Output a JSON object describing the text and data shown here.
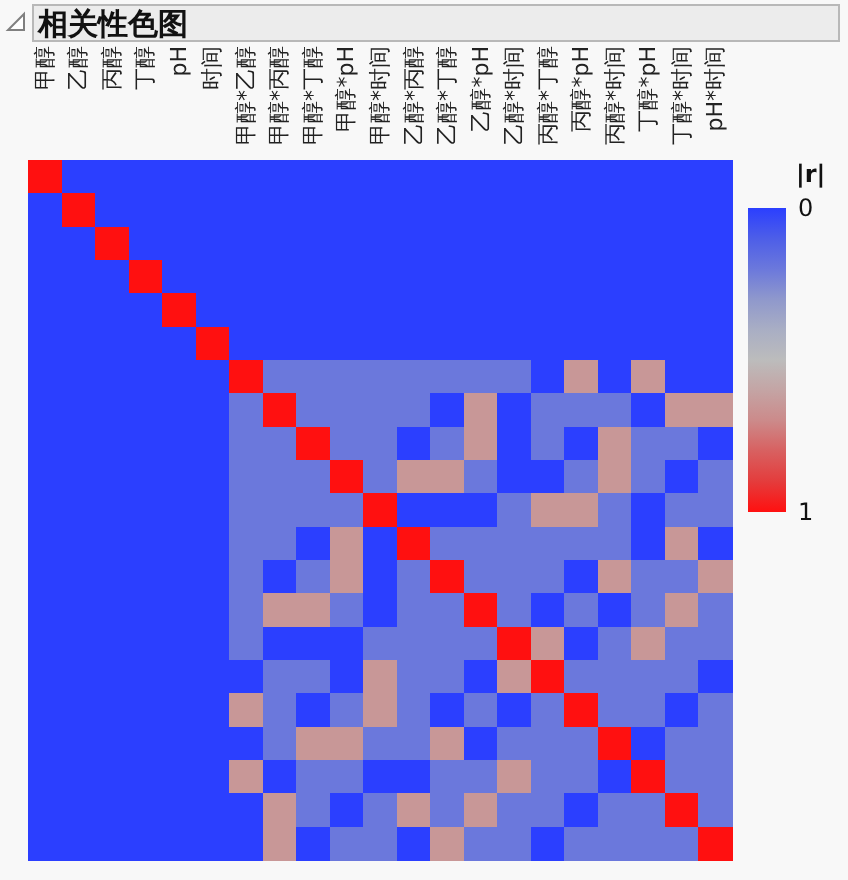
{
  "chart_data": {
    "type": "heatmap",
    "title": "相关性色图",
    "categories": [
      "甲醇",
      "乙醇",
      "丙醇",
      "丁醇",
      "pH",
      "时间",
      "甲醇*乙醇",
      "甲醇*丙醇",
      "甲醇*丁醇",
      "甲醇*pH",
      "甲醇*时间",
      "乙醇*丙醇",
      "乙醇*丁醇",
      "乙醇*pH",
      "乙醇*时间",
      "丙醇*丁醇",
      "丙醇*pH",
      "丙醇*时间",
      "丁醇*pH",
      "丁醇*时间",
      "pH*时间"
    ],
    "y_categories": [
      null,
      null,
      null,
      null,
      null,
      null,
      null,
      null,
      null,
      null,
      null,
      null,
      null,
      null,
      null,
      null,
      null,
      null,
      null,
      null,
      null
    ],
    "tick_labels": "x",
    "cells": [
      [
        1,
        0,
        0,
        0,
        0,
        0,
        0,
        0,
        0,
        0,
        0,
        0,
        0,
        0,
        0,
        0,
        0,
        0,
        0,
        0,
        0
      ],
      [
        0,
        1,
        0,
        0,
        0,
        0,
        0,
        0,
        0,
        0,
        0,
        0,
        0,
        0,
        0,
        0,
        0,
        0,
        0,
        0,
        0
      ],
      [
        0,
        0,
        1,
        0,
        0,
        0,
        0,
        0,
        0,
        0,
        0,
        0,
        0,
        0,
        0,
        0,
        0,
        0,
        0,
        0,
        0
      ],
      [
        0,
        0,
        0,
        1,
        0,
        0,
        0,
        0,
        0,
        0,
        0,
        0,
        0,
        0,
        0,
        0,
        0,
        0,
        0,
        0,
        0
      ],
      [
        0,
        0,
        0,
        0,
        1,
        0,
        0,
        0,
        0,
        0,
        0,
        0,
        0,
        0,
        0,
        0,
        0,
        0,
        0,
        0,
        0
      ],
      [
        0,
        0,
        0,
        0,
        0,
        1,
        0,
        0,
        0,
        0,
        0,
        0,
        0,
        0,
        0,
        0,
        0,
        0,
        0,
        0,
        0
      ],
      [
        0,
        0,
        0,
        0,
        0,
        0,
        1,
        0.2,
        0.2,
        0.2,
        0.2,
        0.2,
        0.2,
        0.2,
        0.2,
        0,
        0.65,
        0,
        0.65,
        0,
        0
      ],
      [
        0,
        0,
        0,
        0,
        0,
        0,
        0.2,
        1,
        0.2,
        0.2,
        0.2,
        0.2,
        0,
        0.65,
        0,
        0.2,
        0.2,
        0.2,
        0,
        0.65,
        0.65
      ],
      [
        0,
        0,
        0,
        0,
        0,
        0,
        0.2,
        0.2,
        1,
        0.2,
        0.2,
        0,
        0.2,
        0.65,
        0,
        0.2,
        0,
        0.65,
        0.2,
        0.2,
        0
      ],
      [
        0,
        0,
        0,
        0,
        0,
        0,
        0.2,
        0.2,
        0.2,
        1,
        0.2,
        0.65,
        0.65,
        0.2,
        0,
        0,
        0.2,
        0.65,
        0.2,
        0,
        0.2
      ],
      [
        0,
        0,
        0,
        0,
        0,
        0,
        0.2,
        0.2,
        0.2,
        0.2,
        1,
        0,
        0,
        0,
        0.2,
        0.65,
        0.65,
        0.2,
        0,
        0.2,
        0.2
      ],
      [
        0,
        0,
        0,
        0,
        0,
        0,
        0.2,
        0.2,
        0,
        0.65,
        0,
        1,
        0.2,
        0.2,
        0.2,
        0.2,
        0.2,
        0.2,
        0,
        0.65,
        0
      ],
      [
        0,
        0,
        0,
        0,
        0,
        0,
        0.2,
        0,
        0.2,
        0.65,
        0,
        0.2,
        1,
        0.2,
        0.2,
        0.2,
        0,
        0.65,
        0.2,
        0.2,
        0.65
      ],
      [
        0,
        0,
        0,
        0,
        0,
        0,
        0.2,
        0.65,
        0.65,
        0.2,
        0,
        0.2,
        0.2,
        1,
        0.2,
        0,
        0.2,
        0,
        0.2,
        0.65,
        0.2
      ],
      [
        0,
        0,
        0,
        0,
        0,
        0,
        0.2,
        0,
        0,
        0,
        0.2,
        0.2,
        0.2,
        0.2,
        1,
        0.65,
        0,
        0.2,
        0.65,
        0.2,
        0.2
      ],
      [
        0,
        0,
        0,
        0,
        0,
        0,
        0,
        0.2,
        0.2,
        0,
        0.65,
        0.2,
        0.2,
        0,
        0.65,
        1,
        0.2,
        0.2,
        0.2,
        0.2,
        0
      ],
      [
        0,
        0,
        0,
        0,
        0,
        0,
        0.65,
        0.2,
        0,
        0.2,
        0.65,
        0.2,
        0,
        0.2,
        0,
        0.2,
        1,
        0.2,
        0.2,
        0,
        0.2
      ],
      [
        0,
        0,
        0,
        0,
        0,
        0,
        0,
        0.2,
        0.65,
        0.65,
        0.2,
        0.2,
        0.65,
        0,
        0.2,
        0.2,
        0.2,
        1,
        0,
        0.2,
        0.2
      ],
      [
        0,
        0,
        0,
        0,
        0,
        0,
        0.65,
        0,
        0.2,
        0.2,
        0,
        0,
        0.2,
        0.2,
        0.65,
        0.2,
        0.2,
        0,
        1,
        0.2,
        0.2
      ],
      [
        0,
        0,
        0,
        0,
        0,
        0,
        0,
        0.65,
        0.2,
        0,
        0.2,
        0.65,
        0.2,
        0.65,
        0.2,
        0.2,
        0,
        0.2,
        0.2,
        1,
        0.2
      ],
      [
        0,
        0,
        0,
        0,
        0,
        0,
        0,
        0.65,
        0,
        0.2,
        0.2,
        0,
        0.65,
        0.2,
        0.2,
        0,
        0.2,
        0.2,
        0.2,
        0.2,
        1
      ]
    ],
    "clabel": "|r|",
    "clim": [
      0,
      1
    ],
    "cticks": [
      0,
      1
    ]
  }
}
